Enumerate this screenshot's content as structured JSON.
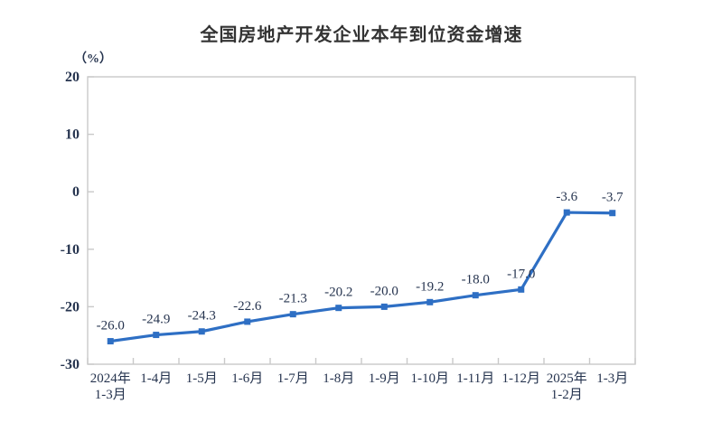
{
  "chart_data": {
    "type": "line",
    "title": "全国房地产开发企业本年到位资金增速",
    "unit_label": "（%）",
    "categories": [
      [
        "2024年",
        "1-3月"
      ],
      [
        "1-4月"
      ],
      [
        "1-5月"
      ],
      [
        "1-6月"
      ],
      [
        "1-7月"
      ],
      [
        "1-8月"
      ],
      [
        "1-9月"
      ],
      [
        "1-10月"
      ],
      [
        "1-11月"
      ],
      [
        "1-12月"
      ],
      [
        "2025年",
        "1-2月"
      ],
      [
        "1-3月"
      ]
    ],
    "values": [
      -26.0,
      -24.9,
      -24.3,
      -22.6,
      -21.3,
      -20.2,
      -20.0,
      -19.2,
      -18.0,
      -17.0,
      -3.6,
      -3.7
    ],
    "data_labels": [
      "-26.0",
      "-24.9",
      "-24.3",
      "-22.6",
      "-21.3",
      "-20.2",
      "-20.0",
      "-19.2",
      "-18.0",
      "-17.0",
      "-3.6",
      "-3.7"
    ],
    "y_ticks": [
      20,
      10,
      0,
      -10,
      -20,
      -30
    ],
    "ylim": [
      -30,
      20
    ],
    "xlabel": "",
    "ylabel": "（%）",
    "grid": false,
    "legend": "none",
    "marker": "square",
    "colors": {
      "line": "#2E6FC4",
      "label": "#26344F",
      "title": "#333333",
      "axis": "#C9C9C9"
    }
  }
}
